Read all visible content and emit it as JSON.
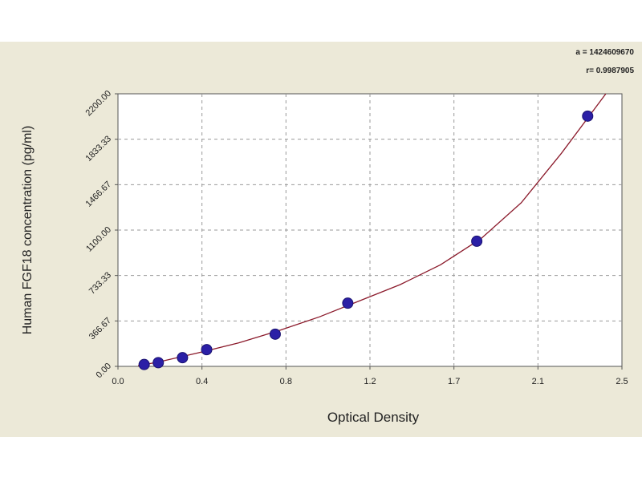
{
  "chart_data": {
    "type": "scatter",
    "title": "",
    "xlabel": "Optical Density",
    "ylabel": "Human FGF18 concentration (pg/ml)",
    "xlim": [
      0.0,
      2.5
    ],
    "ylim": [
      0.0,
      2200.0
    ],
    "x_ticks": [
      "0.0",
      "0.4",
      "0.8",
      "1.2",
      "1.7",
      "2.1",
      "2.5"
    ],
    "y_ticks": [
      "0.00",
      "366.67",
      "733.33",
      "1100.00",
      "1466.67",
      "1833.33",
      "2200.00"
    ],
    "grid": true,
    "annotations": [
      "a = 1424609670",
      "r= 0.9987905"
    ],
    "points": [
      {
        "x": 0.13,
        "y": 15
      },
      {
        "x": 0.2,
        "y": 30
      },
      {
        "x": 0.32,
        "y": 70
      },
      {
        "x": 0.44,
        "y": 135
      },
      {
        "x": 0.78,
        "y": 260
      },
      {
        "x": 1.14,
        "y": 510
      },
      {
        "x": 1.78,
        "y": 1010
      },
      {
        "x": 2.33,
        "y": 2020
      }
    ],
    "fit_curve": [
      {
        "x": 0.1,
        "y": 5
      },
      {
        "x": 0.2,
        "y": 35
      },
      {
        "x": 0.4,
        "y": 110
      },
      {
        "x": 0.6,
        "y": 190
      },
      {
        "x": 0.8,
        "y": 290
      },
      {
        "x": 1.0,
        "y": 400
      },
      {
        "x": 1.2,
        "y": 530
      },
      {
        "x": 1.4,
        "y": 660
      },
      {
        "x": 1.6,
        "y": 820
      },
      {
        "x": 1.8,
        "y": 1030
      },
      {
        "x": 2.0,
        "y": 1320
      },
      {
        "x": 2.2,
        "y": 1720
      },
      {
        "x": 2.42,
        "y": 2200
      }
    ],
    "colors": {
      "point": "#2b1fa6",
      "curve": "#8b1a2b",
      "background": "#ece9d8",
      "plot_area": "#ffffff",
      "grid": "#9a9a9a"
    }
  }
}
